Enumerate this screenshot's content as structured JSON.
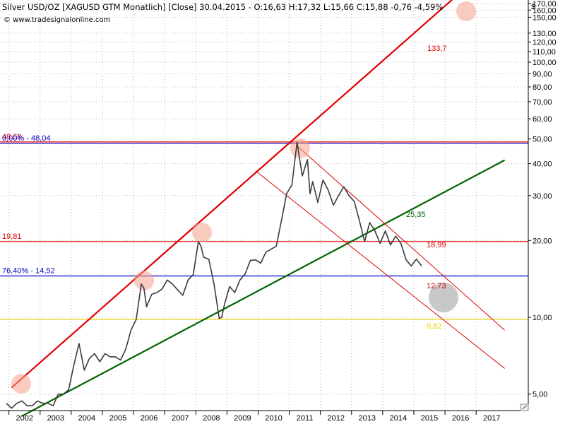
{
  "header": {
    "title": "Silver USD/OZ [XAGUSD GTM  Monatlich] [Close] 30.04.2015 - O:16,63 H:17,32 L:15,66 C:15,88 -0,76 -4,59%",
    "url": "© www.tradesignalonline.com",
    "currency": "$"
  },
  "colors": {
    "price": "#3a3a3a",
    "red_line": "#e00000",
    "green_line": "#006400",
    "blue_line": "#0000c8",
    "yellow_line": "#e8d200",
    "grid": "#b8b8b8",
    "marker": "#f4a38a",
    "gray_marker": "#9a9a9a"
  },
  "chart_data": {
    "type": "line",
    "title": "Silver USD/OZ [XAGUSD GTM Monatlich] [Close]",
    "y_scale": "log",
    "ylim": [
      4.1,
      200
    ],
    "x_range": [
      "2001-12",
      "2017-12"
    ],
    "grid": true,
    "y_ticks": [
      {
        "value": 170,
        "label": "170,00"
      },
      {
        "value": 160,
        "label": "160,00"
      },
      {
        "value": 150,
        "label": "150,00"
      },
      {
        "value": 130,
        "label": "130,00"
      },
      {
        "value": 120,
        "label": "120,00"
      },
      {
        "value": 110,
        "label": "110,00"
      },
      {
        "value": 100,
        "label": "100,00"
      },
      {
        "value": 90,
        "label": "90,00"
      },
      {
        "value": 80,
        "label": "80,00"
      },
      {
        "value": 70,
        "label": "70,00"
      },
      {
        "value": 60,
        "label": "60,00"
      },
      {
        "value": 50,
        "label": "50,00"
      },
      {
        "value": 40,
        "label": "40,00"
      },
      {
        "value": 30,
        "label": "30,00"
      },
      {
        "value": 20,
        "label": "20,00"
      },
      {
        "value": 10,
        "label": "10,00"
      },
      {
        "value": 5,
        "label": "5,00"
      }
    ],
    "x_ticks": [
      "2002",
      "2003",
      "2004",
      "2005",
      "2006",
      "2007",
      "2008",
      "2009",
      "2010",
      "2011",
      "2012",
      "2013",
      "2014",
      "2015",
      "2016",
      "2017"
    ],
    "series": [
      {
        "x": [
          "2001-12",
          "2002-02",
          "2002-04",
          "2002-06",
          "2002-08",
          "2002-10",
          "2002-12",
          "2003-02",
          "2003-04",
          "2003-06",
          "2003-08",
          "2003-10",
          "2003-12",
          "2004-02",
          "2004-04",
          "2004-06",
          "2004-08",
          "2004-10",
          "2004-12",
          "2005-02",
          "2005-04",
          "2005-06",
          "2005-08",
          "2005-10",
          "2005-12",
          "2006-02",
          "2006-04",
          "2006-05",
          "2006-06",
          "2006-08",
          "2006-10",
          "2006-12",
          "2007-02",
          "2007-04",
          "2007-06",
          "2007-08",
          "2007-10",
          "2007-12",
          "2008-02",
          "2008-03",
          "2008-04",
          "2008-06",
          "2008-08",
          "2008-10",
          "2008-11",
          "2008-12",
          "2009-02",
          "2009-04",
          "2009-06",
          "2009-08",
          "2009-10",
          "2009-12",
          "2010-02",
          "2010-04",
          "2010-06",
          "2010-08",
          "2010-10",
          "2010-12",
          "2011-02",
          "2011-04",
          "2011-06",
          "2011-08",
          "2011-09",
          "2011-10",
          "2011-12",
          "2012-02",
          "2012-04",
          "2012-06",
          "2012-08",
          "2012-10",
          "2012-12",
          "2013-02",
          "2013-04",
          "2013-06",
          "2013-08",
          "2013-10",
          "2013-12",
          "2014-02",
          "2014-04",
          "2014-06",
          "2014-08",
          "2014-10",
          "2014-12",
          "2015-02",
          "2015-04"
        ],
        "values": [
          4.6,
          4.4,
          4.6,
          4.7,
          4.5,
          4.5,
          4.7,
          4.6,
          4.6,
          4.5,
          5.0,
          5.0,
          5.2,
          6.5,
          7.9,
          6.2,
          6.9,
          7.2,
          6.7,
          7.2,
          7.0,
          7.0,
          6.8,
          7.5,
          8.9,
          9.8,
          13.5,
          13.0,
          11.0,
          12.3,
          12.5,
          12.9,
          14.0,
          13.5,
          12.8,
          12.2,
          14.0,
          14.7,
          19.8,
          19.0,
          17.2,
          16.9,
          13.5,
          9.9,
          10.0,
          11.2,
          13.2,
          12.5,
          14.0,
          14.8,
          16.7,
          16.8,
          16.3,
          18.0,
          18.5,
          19.0,
          24.0,
          30.6,
          33.0,
          48.5,
          35.8,
          41.5,
          30.5,
          34.0,
          28.2,
          34.5,
          31.5,
          27.5,
          30.0,
          32.5,
          30.0,
          28.5,
          24.0,
          19.8,
          23.5,
          21.8,
          19.5,
          21.8,
          19.2,
          20.8,
          19.5,
          16.8,
          15.9,
          16.9,
          15.9
        ]
      }
    ],
    "lines": [
      {
        "kind": "trend",
        "color": "red",
        "label": "133,7",
        "points": [
          [
            "2002-02",
            5.3
          ],
          [
            "2016-10",
            200
          ]
        ]
      },
      {
        "kind": "trend",
        "color": "green",
        "label": "25,35",
        "points": [
          [
            "2002-06",
            4.1
          ],
          [
            "2017-12",
            41.3
          ]
        ]
      },
      {
        "kind": "channel",
        "color": "red",
        "points": [
          [
            "2011-04",
            47
          ],
          [
            "2017-12",
            8.9
          ]
        ]
      },
      {
        "kind": "channel",
        "color": "red",
        "points": [
          [
            "2009-12",
            37.5
          ],
          [
            "2017-12",
            6.3
          ]
        ]
      },
      {
        "kind": "horizontal",
        "color": "red",
        "label": "48,68",
        "value": 48.68
      },
      {
        "kind": "horizontal",
        "color": "blue",
        "label": "0,00% - 48,04",
        "value": 48.04
      },
      {
        "kind": "horizontal",
        "color": "red",
        "label": "19,81",
        "value": 19.81
      },
      {
        "kind": "horizontal",
        "color": "blue",
        "label": "76,40% - 14,52",
        "value": 14.52
      },
      {
        "kind": "horizontal",
        "color": "yellow",
        "label": "9,82",
        "value": 9.82
      }
    ],
    "annotations": [
      {
        "label": "18,99",
        "value": 18.99
      },
      {
        "label": "12,73",
        "value": 12.73
      }
    ]
  }
}
